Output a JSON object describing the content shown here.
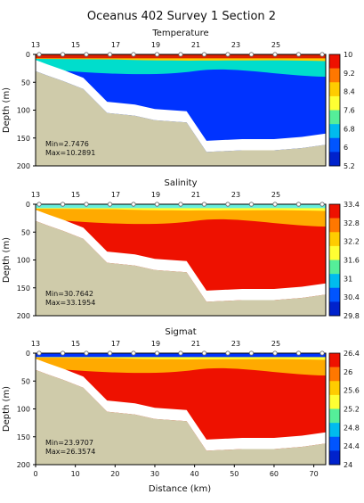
{
  "figure_title": "Oceanus 402 Survey 1 Section 2",
  "xlabel": "Distance (km)",
  "ylabel": "Depth (m)",
  "station_ticks": [
    "13",
    "15",
    "17",
    "19",
    "21",
    "23",
    "25"
  ],
  "chart_data": [
    {
      "type": "heatmap",
      "title": "Temperature",
      "xlabel": "",
      "ylabel": "Depth (m)",
      "x_ticks": [],
      "y_ticks": [
        "0",
        "50",
        "100",
        "150",
        "200"
      ],
      "station_labels": [
        "13",
        "15",
        "17",
        "19",
        "21",
        "23",
        "25"
      ],
      "stats": {
        "min": "Min=2.7476",
        "max": "Max=10.2891"
      },
      "colorbar_ticks": [
        "10",
        "9.2",
        "8.4",
        "7.6",
        "6.8",
        "6",
        "5.2"
      ],
      "xlim": [
        0,
        73
      ],
      "ylim": [
        200,
        0
      ],
      "bottom_profile_depth_m": [
        [
          0,
          30
        ],
        [
          3,
          38
        ],
        [
          7,
          48
        ],
        [
          12,
          62
        ],
        [
          18,
          105
        ],
        [
          25,
          110
        ],
        [
          30,
          118
        ],
        [
          38,
          122
        ],
        [
          43,
          175
        ],
        [
          52,
          172
        ],
        [
          60,
          172
        ],
        [
          67,
          168
        ],
        [
          73,
          162
        ]
      ],
      "colors": {
        "surface": "#dd2200",
        "upper": "#ffcc00",
        "mid": "#00ddcc",
        "deep": "#0033ff"
      }
    },
    {
      "type": "heatmap",
      "title": "Salinity",
      "xlabel": "",
      "ylabel": "Depth (m)",
      "x_ticks": [],
      "y_ticks": [
        "0",
        "50",
        "100",
        "150",
        "200"
      ],
      "station_labels": [
        "13",
        "15",
        "17",
        "19",
        "21",
        "23",
        "25"
      ],
      "stats": {
        "min": "Min=30.7642",
        "max": "Max=33.1954"
      },
      "colorbar_ticks": [
        "33.4",
        "32.8",
        "32.2",
        "31.6",
        "31",
        "30.4",
        "29.8"
      ],
      "xlim": [
        0,
        73
      ],
      "ylim": [
        200,
        0
      ],
      "bottom_profile_depth_m": [
        [
          0,
          30
        ],
        [
          3,
          38
        ],
        [
          7,
          48
        ],
        [
          12,
          62
        ],
        [
          18,
          105
        ],
        [
          25,
          110
        ],
        [
          30,
          118
        ],
        [
          38,
          122
        ],
        [
          43,
          175
        ],
        [
          52,
          172
        ],
        [
          60,
          172
        ],
        [
          67,
          168
        ],
        [
          73,
          162
        ]
      ],
      "colors": {
        "surface": "#66eedd",
        "upper": "#ffff33",
        "mid": "#ffaa00",
        "deep": "#ee1100"
      }
    },
    {
      "type": "heatmap",
      "title": "Sigmat",
      "xlabel": "Distance (km)",
      "ylabel": "Depth (m)",
      "x_ticks": [
        "0",
        "10",
        "20",
        "30",
        "40",
        "50",
        "60",
        "70"
      ],
      "y_ticks": [
        "0",
        "50",
        "100",
        "150",
        "200"
      ],
      "station_labels": [
        "13",
        "15",
        "17",
        "19",
        "21",
        "23",
        "25"
      ],
      "stats": {
        "min": "Min=23.9707",
        "max": "Max=26.3574"
      },
      "colorbar_ticks": [
        "26.4",
        "26",
        "25.6",
        "25.2",
        "24.8",
        "24.4",
        "24"
      ],
      "xlim": [
        0,
        73
      ],
      "ylim": [
        200,
        0
      ],
      "bottom_profile_depth_m": [
        [
          0,
          30
        ],
        [
          3,
          38
        ],
        [
          7,
          48
        ],
        [
          12,
          62
        ],
        [
          18,
          105
        ],
        [
          25,
          110
        ],
        [
          30,
          118
        ],
        [
          38,
          122
        ],
        [
          43,
          175
        ],
        [
          52,
          172
        ],
        [
          60,
          172
        ],
        [
          67,
          168
        ],
        [
          73,
          162
        ]
      ],
      "colors": {
        "surface": "#0033ff",
        "upper": "#ffff33",
        "mid": "#ffaa00",
        "deep": "#ee1100"
      }
    }
  ]
}
